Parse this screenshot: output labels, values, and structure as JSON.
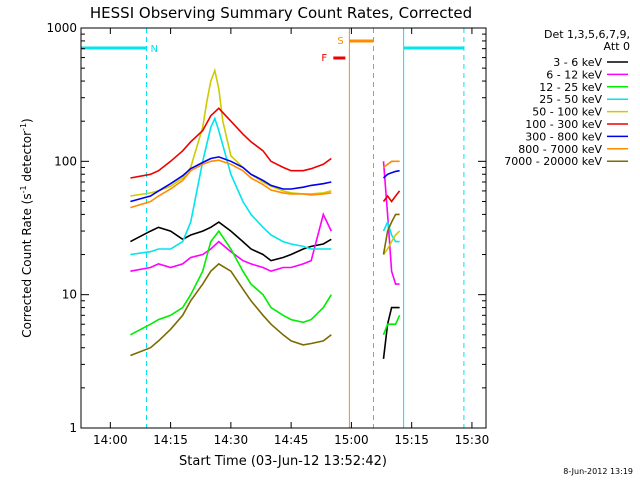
{
  "chart_data": {
    "type": "line",
    "title": "HESSI Observing Summary Count Rates, Corrected",
    "xlabel": "Start Time (03-Jun-12 13:52:42)",
    "ylabel": "Corrected Count Rate (s⁻¹ detector⁻¹)",
    "ylabel_main": "Corrected Count Rate (s",
    "ylabel_sup1": "-1",
    "ylabel_mid": " detector",
    "ylabel_sup2": "-1",
    "ylabel_end": ")",
    "timestamp": "8-Jun-2012 13:19",
    "yscale": "log",
    "ylim": [
      1,
      1000
    ],
    "xlim": [
      "13:52:42",
      "15:33:30"
    ],
    "x_ticks": [
      "14:00",
      "14:15",
      "14:30",
      "14:45",
      "15:00",
      "15:15",
      "15:30"
    ],
    "y_ticks": [
      "1",
      "10",
      "100",
      "1000"
    ],
    "legend": {
      "header1": "Det 1,3,5,6,7,9,",
      "header2": "Att 0",
      "placement": "right"
    },
    "colors": {
      "3-6": "#000000",
      "6-12": "#ff00ff",
      "12-25": "#00ee00",
      "25-50": "#00e5ee",
      "50-100": "#cccc00",
      "100-300": "#ee0000",
      "300-800": "#0000ee",
      "800-7000": "#ff8c00",
      "7000-20000": "#7b6b00",
      "cyan_flag": "#00e5ee",
      "orange_flag": "#ff8c00",
      "red_flag": "#ee0000"
    },
    "flags": [
      {
        "label": "N",
        "note": "night",
        "segments": [
          [
            "13:52:42",
            "14:09:00"
          ],
          [
            "15:13:00",
            "15:28:00"
          ]
        ]
      },
      {
        "label": "S",
        "note": "SAA",
        "segments": [
          [
            "14:59:30",
            "15:05:30"
          ]
        ]
      },
      {
        "label": "F",
        "note": "flare",
        "segments": [
          [
            "14:55:30",
            "14:58:30"
          ]
        ]
      }
    ],
    "series": [
      {
        "name": "3 - 6 keV",
        "key": "3-6",
        "x": [
          "14:05",
          "14:10",
          "14:12",
          "14:15",
          "14:18",
          "14:20",
          "14:23",
          "14:25",
          "14:27",
          "14:30",
          "14:33",
          "14:35",
          "14:38",
          "14:40",
          "14:43",
          "14:45",
          "14:48",
          "14:50",
          "14:53",
          "14:55",
          "15:08",
          "15:09",
          "15:10",
          "15:11",
          "15:12"
        ],
        "y": [
          25,
          30,
          32,
          30,
          26,
          28,
          30,
          32,
          35,
          30,
          25,
          22,
          20,
          18,
          19,
          20,
          22,
          23,
          24,
          26,
          3.3,
          6,
          8,
          8,
          8
        ]
      },
      {
        "name": "6 - 12 keV",
        "key": "6-12",
        "x": [
          "14:05",
          "14:10",
          "14:12",
          "14:15",
          "14:18",
          "14:20",
          "14:23",
          "14:25",
          "14:27",
          "14:30",
          "14:33",
          "14:35",
          "14:38",
          "14:40",
          "14:43",
          "14:45",
          "14:48",
          "14:50",
          "14:53",
          "14:55",
          "15:08",
          "15:09",
          "15:10",
          "15:11",
          "15:12"
        ],
        "y": [
          15,
          16,
          17,
          16,
          17,
          19,
          20,
          22,
          25,
          21,
          18,
          17,
          16,
          15,
          16,
          16,
          17,
          18,
          40,
          30,
          100,
          40,
          15,
          12,
          12
        ]
      },
      {
        "name": "12 - 25 keV",
        "key": "12-25",
        "x": [
          "14:05",
          "14:10",
          "14:12",
          "14:15",
          "14:18",
          "14:20",
          "14:23",
          "14:25",
          "14:27",
          "14:30",
          "14:33",
          "14:35",
          "14:38",
          "14:40",
          "14:43",
          "14:45",
          "14:48",
          "14:50",
          "14:53",
          "14:55",
          "15:08",
          "15:09",
          "15:10",
          "15:11",
          "15:12"
        ],
        "y": [
          5,
          6,
          6.5,
          7,
          8,
          10,
          15,
          25,
          30,
          22,
          15,
          12,
          10,
          8,
          7,
          6.5,
          6.2,
          6.5,
          8,
          10,
          5,
          6,
          6,
          6,
          7
        ]
      },
      {
        "name": "25 - 50 keV",
        "key": "25-50",
        "x": [
          "14:05",
          "14:10",
          "14:12",
          "14:15",
          "14:18",
          "14:20",
          "14:23",
          "14:25",
          "14:26",
          "14:27",
          "14:30",
          "14:33",
          "14:35",
          "14:38",
          "14:40",
          "14:43",
          "14:45",
          "14:48",
          "14:50",
          "14:53",
          "14:55",
          "15:08",
          "15:09",
          "15:10",
          "15:11",
          "15:12"
        ],
        "y": [
          20,
          21,
          22,
          22,
          25,
          35,
          100,
          180,
          210,
          170,
          80,
          50,
          40,
          32,
          28,
          25,
          24,
          23,
          22,
          22,
          22,
          30,
          35,
          28,
          25,
          25
        ]
      },
      {
        "name": "50 - 100 keV",
        "key": "50-100",
        "x": [
          "14:05",
          "14:10",
          "14:12",
          "14:15",
          "14:18",
          "14:20",
          "14:23",
          "14:24",
          "14:25",
          "14:26",
          "14:27",
          "14:28",
          "14:30",
          "14:33",
          "14:35",
          "14:38",
          "14:40",
          "14:43",
          "14:45",
          "14:48",
          "14:50",
          "14:53",
          "14:55",
          "15:08",
          "15:09",
          "15:10",
          "15:11",
          "15:12"
        ],
        "y": [
          55,
          58,
          60,
          65,
          75,
          90,
          180,
          280,
          400,
          480,
          350,
          200,
          110,
          90,
          80,
          70,
          65,
          60,
          58,
          57,
          57,
          58,
          60,
          20,
          22,
          25,
          28,
          30
        ]
      },
      {
        "name": "100 - 300 keV",
        "key": "100-300",
        "x": [
          "14:05",
          "14:10",
          "14:12",
          "14:15",
          "14:18",
          "14:20",
          "14:23",
          "14:25",
          "14:27",
          "14:30",
          "14:33",
          "14:35",
          "14:38",
          "14:40",
          "14:43",
          "14:45",
          "14:48",
          "14:50",
          "14:53",
          "14:55",
          "15:08",
          "15:09",
          "15:10",
          "15:11",
          "15:12"
        ],
        "y": [
          75,
          80,
          85,
          100,
          120,
          140,
          170,
          220,
          250,
          200,
          160,
          140,
          120,
          100,
          90,
          85,
          85,
          88,
          95,
          105,
          50,
          55,
          50,
          55,
          60
        ]
      },
      {
        "name": "300 - 800 keV",
        "key": "300-800",
        "x": [
          "14:05",
          "14:10",
          "14:12",
          "14:15",
          "14:18",
          "14:20",
          "14:23",
          "14:25",
          "14:27",
          "14:30",
          "14:33",
          "14:35",
          "14:38",
          "14:40",
          "14:43",
          "14:45",
          "14:48",
          "14:50",
          "14:53",
          "14:55",
          "15:08",
          "15:09",
          "15:10",
          "15:11",
          "15:12"
        ],
        "y": [
          50,
          55,
          60,
          68,
          78,
          88,
          98,
          105,
          108,
          100,
          90,
          80,
          72,
          66,
          62,
          62,
          64,
          66,
          68,
          70,
          75,
          80,
          82,
          84,
          85
        ]
      },
      {
        "name": "800 - 7000 keV",
        "key": "800-7000",
        "x": [
          "14:05",
          "14:10",
          "14:12",
          "14:15",
          "14:18",
          "14:20",
          "14:23",
          "14:25",
          "14:27",
          "14:30",
          "14:33",
          "14:35",
          "14:38",
          "14:40",
          "14:43",
          "14:45",
          "14:48",
          "14:50",
          "14:53",
          "14:55",
          "15:08",
          "15:09",
          "15:10",
          "15:11",
          "15:12"
        ],
        "y": [
          45,
          50,
          55,
          62,
          72,
          85,
          95,
          100,
          102,
          95,
          85,
          75,
          67,
          61,
          58,
          57,
          57,
          56,
          57,
          58,
          90,
          95,
          100,
          100,
          100
        ]
      },
      {
        "name": "7000 - 20000 keV",
        "key": "7000-20000",
        "x": [
          "14:05",
          "14:10",
          "14:12",
          "14:15",
          "14:18",
          "14:20",
          "14:23",
          "14:25",
          "14:27",
          "14:30",
          "14:33",
          "14:35",
          "14:38",
          "14:40",
          "14:43",
          "14:45",
          "14:48",
          "14:50",
          "14:53",
          "14:55",
          "15:08",
          "15:09",
          "15:10",
          "15:11",
          "15:12"
        ],
        "y": [
          3.5,
          4,
          4.5,
          5.5,
          7,
          9,
          12,
          15,
          17,
          15,
          11,
          9,
          7,
          6,
          5,
          4.5,
          4.2,
          4.3,
          4.5,
          5,
          20,
          30,
          35,
          40,
          40
        ]
      }
    ]
  }
}
